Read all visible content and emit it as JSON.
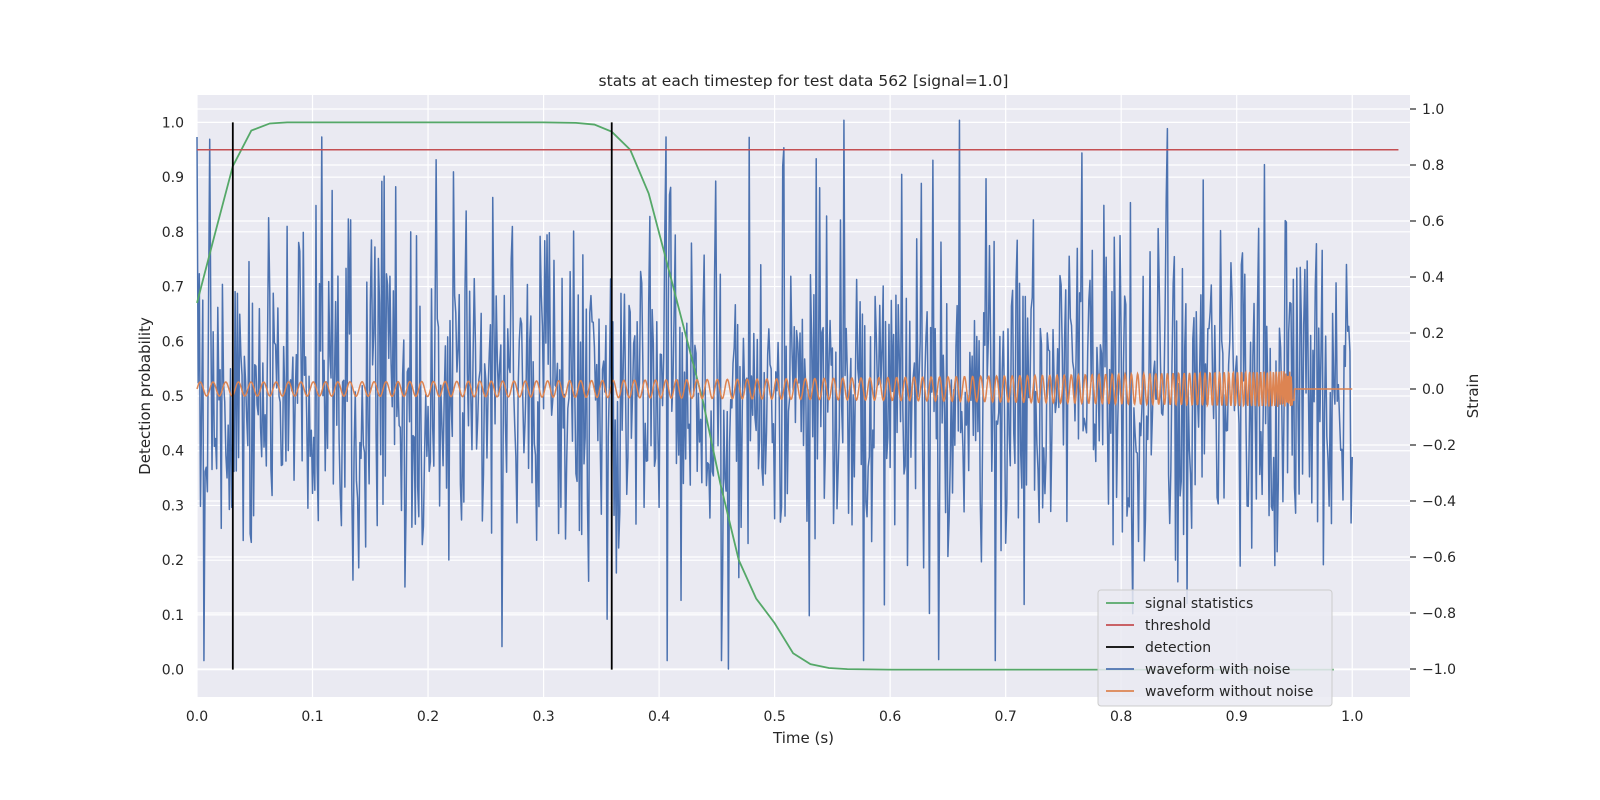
{
  "chart_data": {
    "type": "line",
    "title": "stats at each timestep for test data 562 [signal=1.0]",
    "xlabel": "Time (s)",
    "ylabel": "Detection probability",
    "y2label": "Strain",
    "xlim": [
      0.0,
      1.05
    ],
    "ylim": [
      -0.05,
      1.05
    ],
    "y2lim": [
      -1.1,
      1.05
    ],
    "xticks": [
      0.0,
      0.1,
      0.2,
      0.3,
      0.4,
      0.5,
      0.6,
      0.7,
      0.8,
      0.9,
      1.0
    ],
    "yticks": [
      0.0,
      0.1,
      0.2,
      0.3,
      0.4,
      0.5,
      0.6,
      0.7,
      0.8,
      0.9,
      1.0
    ],
    "y2ticks": [
      -1.0,
      -0.8,
      -0.6,
      -0.4,
      -0.2,
      0.0,
      0.2,
      0.4,
      0.6,
      0.8,
      1.0
    ],
    "grid": true,
    "legend_position": "lower-right",
    "series": [
      {
        "name": "signal statistics",
        "color": "#55a868",
        "axis": "left",
        "x": [
          0.0,
          0.016,
          0.031,
          0.047,
          0.063,
          0.078,
          0.094,
          0.11,
          0.2,
          0.3,
          0.328,
          0.344,
          0.359,
          0.375,
          0.391,
          0.406,
          0.422,
          0.438,
          0.453,
          0.469,
          0.484,
          0.5,
          0.516,
          0.531,
          0.547,
          0.563,
          0.6,
          0.7,
          0.8,
          0.9,
          0.984
        ],
        "y": [
          0.67,
          0.8,
          0.92,
          0.985,
          0.998,
          1.0,
          1.0,
          1.0,
          1.0,
          1.0,
          0.999,
          0.996,
          0.983,
          0.95,
          0.87,
          0.75,
          0.62,
          0.49,
          0.34,
          0.2,
          0.13,
          0.085,
          0.03,
          0.01,
          0.003,
          0.001,
          0.0,
          0.0,
          0.0,
          0.0,
          0.0
        ]
      },
      {
        "name": "threshold",
        "color": "#c44e52",
        "axis": "left",
        "x": [
          0.0,
          1.04
        ],
        "y": [
          0.95,
          0.95
        ]
      },
      {
        "name": "detection",
        "color": "#000000",
        "axis": "left",
        "x": [
          0.031,
          0.359
        ],
        "y": [
          1.0,
          1.0
        ]
      },
      {
        "name": "waveform with noise",
        "color": "#4c72b0",
        "axis": "right",
        "x_range": [
          0.0,
          1.0
        ],
        "y_range": [
          -1.0,
          1.0
        ],
        "peaks": [
          {
            "x": 0.56,
            "y": 0.96
          },
          {
            "x": 0.66,
            "y": 0.96
          },
          {
            "x": 0.84,
            "y": 0.93
          },
          {
            "x": 0.46,
            "y": -1.0
          },
          {
            "x": 0.264,
            "y": -0.92
          }
        ]
      },
      {
        "name": "waveform without noise",
        "color": "#dd8452",
        "axis": "right",
        "x_range": [
          0.0,
          1.0
        ],
        "y_range": [
          -0.08,
          0.08
        ],
        "merger_time": 0.95
      }
    ],
    "legend": [
      {
        "label": "signal statistics",
        "color": "#55a868"
      },
      {
        "label": "threshold",
        "color": "#c44e52"
      },
      {
        "label": "detection",
        "color": "#000000"
      },
      {
        "label": "waveform with noise",
        "color": "#4c72b0"
      },
      {
        "label": "waveform without noise",
        "color": "#dd8452"
      }
    ]
  }
}
